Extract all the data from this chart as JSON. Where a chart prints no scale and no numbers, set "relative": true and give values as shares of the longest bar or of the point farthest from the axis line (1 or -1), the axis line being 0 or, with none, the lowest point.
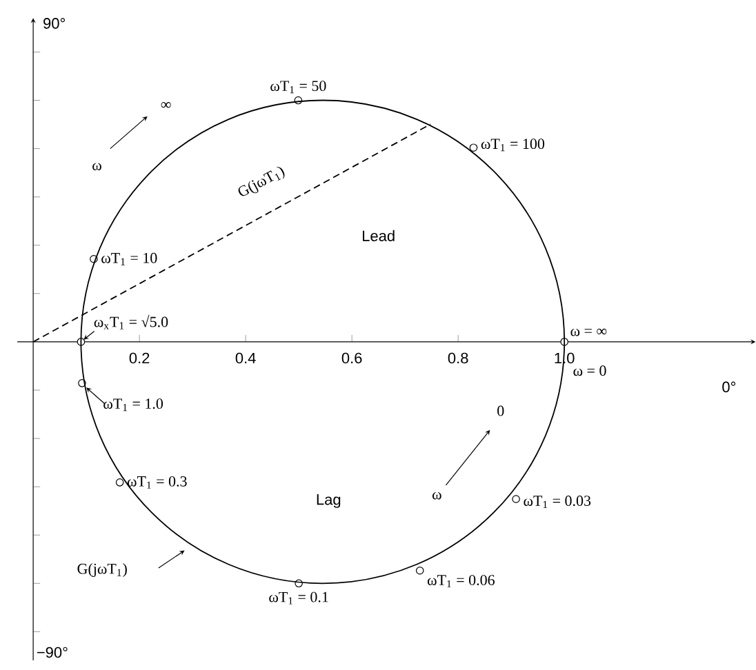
{
  "chart_data": {
    "type": "line",
    "relative": true,
    "xlim": [
      -0.03,
      1.36
    ],
    "xticks": [
      0.2,
      0.4,
      0.6,
      0.8,
      {
        "value": 1.0,
        "label": "1.0"
      }
    ],
    "marker": "circle",
    "series": [
      {
        "color": "#000000",
        "marker": "none",
        "line_style": "dashed",
        "x": [
          0,
          0.748
        ],
        "values": [
          0,
          0.901
        ]
      },
      {
        "type": "scatter",
        "color": "#000000",
        "x": [
          0.499,
          0.829,
          0.114,
          0.09,
          1.0,
          0.092,
          0.163,
          0.5,
          0.728,
          0.909
        ],
        "values": [
          1,
          0.804,
          0.343,
          0,
          0,
          -0.171,
          -0.582,
          -1,
          -0.947,
          -0.651
        ]
      }
    ],
    "annotations": [
      "90°",
      "−90°",
      "0°",
      "Lead",
      "Lag",
      "ω",
      "∞",
      "ω",
      "0",
      "G(jωT$_{1}$)",
      "G(jωT$_{1}$)",
      {
        "text": "ωT$_{1}$ = 50",
        "x": 0.499,
        "y": 1
      },
      {
        "text": "ωT$_{1}$ = 100",
        "x": 0.829,
        "y": 0.804
      },
      {
        "text": "ωT$_{1}$ = 10",
        "x": 0.114,
        "y": 0.343
      },
      {
        "text": "ω$_{x}$T$_{1}$ = √5.0",
        "x": 0.09,
        "y": 0
      },
      {
        "text": "ω = ∞",
        "x": 1.0,
        "y": 0
      },
      {
        "text": "ω = 0",
        "x": 1.0,
        "y": 0
      },
      {
        "text": "ωT$_{1}$ = 1.0",
        "x": 0.092,
        "y": -0.171
      },
      {
        "text": "ωT$_{1}$ = 0.3",
        "x": 0.163,
        "y": -0.582
      },
      {
        "text": "ωT$_{1}$ = 0.1",
        "x": 0.5,
        "y": -1
      },
      {
        "text": "ωT$_{1}$ = 0.06",
        "x": 0.728,
        "y": -0.947
      },
      {
        "text": "ωT$_{1}$ = 0.03",
        "x": 0.909,
        "y": -0.651
      }
    ]
  }
}
